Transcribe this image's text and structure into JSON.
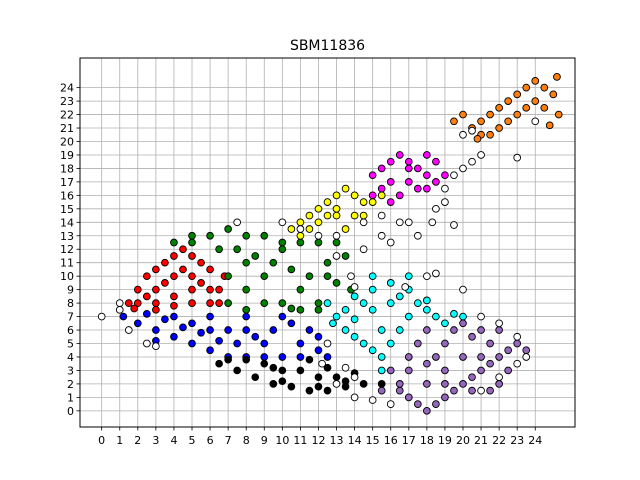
{
  "chart_data": {
    "type": "scatter",
    "title": "SBM11836",
    "xlabel": "",
    "ylabel": "",
    "xlim": [
      -1.2,
      26.2
    ],
    "ylim": [
      -1.2,
      26.2
    ],
    "xticks": [
      0,
      1,
      2,
      3,
      4,
      5,
      6,
      7,
      8,
      9,
      10,
      11,
      12,
      13,
      14,
      15,
      16,
      17,
      18,
      19,
      20,
      21,
      22,
      23,
      24
    ],
    "yticks": [
      0,
      1,
      2,
      3,
      4,
      5,
      6,
      7,
      8,
      9,
      10,
      11,
      12,
      13,
      14,
      15,
      16,
      17,
      18,
      19,
      20,
      21,
      22,
      23,
      24
    ],
    "grid": true,
    "legend": "none",
    "marker": "circle",
    "series": [
      {
        "color": "#ff0000",
        "points": [
          [
            1.5,
            8
          ],
          [
            2,
            9
          ],
          [
            2.5,
            10
          ],
          [
            3,
            10.5
          ],
          [
            3.5,
            11
          ],
          [
            4,
            11.5
          ],
          [
            4.5,
            12
          ],
          [
            5,
            11.5
          ],
          [
            5.5,
            11
          ],
          [
            6,
            10.5
          ],
          [
            2,
            8
          ],
          [
            3,
            9
          ],
          [
            4,
            10
          ],
          [
            5,
            10
          ],
          [
            6,
            9
          ],
          [
            6.5,
            8
          ],
          [
            3,
            8
          ],
          [
            4,
            8.5
          ],
          [
            5,
            9
          ],
          [
            6,
            8
          ],
          [
            2.5,
            8.5
          ],
          [
            3.5,
            9.5
          ],
          [
            4.5,
            10.5
          ],
          [
            5.5,
            9.5
          ],
          [
            6.5,
            9
          ],
          [
            1.8,
            7.6
          ],
          [
            4,
            7.8
          ],
          [
            5,
            8
          ],
          [
            3,
            7.5
          ],
          [
            6.8,
            10
          ]
        ]
      },
      {
        "color": "#0000ff",
        "points": [
          [
            1.2,
            7
          ],
          [
            2,
            6.5
          ],
          [
            3,
            6
          ],
          [
            4,
            5.5
          ],
          [
            5,
            5
          ],
          [
            6,
            4.5
          ],
          [
            7,
            4
          ],
          [
            8,
            4
          ],
          [
            9,
            4
          ],
          [
            10,
            4
          ],
          [
            11,
            4
          ],
          [
            12,
            4.5
          ],
          [
            2.5,
            7.2
          ],
          [
            3.5,
            6.8
          ],
          [
            4.5,
            6.2
          ],
          [
            5.5,
            5.8
          ],
          [
            6.5,
            5.2
          ],
          [
            7.5,
            5
          ],
          [
            8.5,
            5.5
          ],
          [
            9.5,
            6
          ],
          [
            10.5,
            6.5
          ],
          [
            11.5,
            6
          ],
          [
            12,
            5.5
          ],
          [
            4,
            7
          ],
          [
            6,
            7
          ],
          [
            8,
            7
          ],
          [
            10,
            7
          ],
          [
            11,
            5
          ],
          [
            9,
            5
          ],
          [
            7,
            6
          ],
          [
            5,
            6.5
          ],
          [
            3,
            5.2
          ],
          [
            12.5,
            4
          ],
          [
            8,
            6
          ],
          [
            6,
            6
          ]
        ]
      },
      {
        "color": "#000000",
        "points": [
          [
            6.5,
            3.5
          ],
          [
            7.5,
            3
          ],
          [
            8.5,
            2.5
          ],
          [
            9.5,
            2
          ],
          [
            10.5,
            1.8
          ],
          [
            11.5,
            1.5
          ],
          [
            12.5,
            1.5
          ],
          [
            13.5,
            1.8
          ],
          [
            14.5,
            2
          ],
          [
            15.5,
            2
          ],
          [
            9,
            3.5
          ],
          [
            10,
            3
          ],
          [
            11,
            3
          ],
          [
            12,
            2.5
          ],
          [
            13,
            2.5
          ],
          [
            14,
            2.8
          ],
          [
            8,
            3.8
          ],
          [
            10,
            2.2
          ],
          [
            12,
            1.8
          ],
          [
            11.5,
            3.8
          ],
          [
            13.5,
            2.2
          ],
          [
            7,
            3.8
          ],
          [
            9.5,
            3.2
          ],
          [
            12.5,
            3.2
          ]
        ]
      },
      {
        "color": "#008000",
        "points": [
          [
            4,
            12.5
          ],
          [
            5,
            13
          ],
          [
            6,
            13
          ],
          [
            7,
            13.5
          ],
          [
            8,
            13
          ],
          [
            9,
            13
          ],
          [
            10,
            12.5
          ],
          [
            11,
            12.5
          ],
          [
            12,
            12.5
          ],
          [
            13,
            12.5
          ],
          [
            7.5,
            12
          ],
          [
            8.5,
            11.5
          ],
          [
            9.5,
            11
          ],
          [
            10.5,
            10.5
          ],
          [
            11.5,
            10
          ],
          [
            12.5,
            10
          ],
          [
            13,
            9.5
          ],
          [
            7,
            10
          ],
          [
            8,
            9
          ],
          [
            9,
            8
          ],
          [
            10,
            8
          ],
          [
            11,
            7.5
          ],
          [
            12,
            8
          ],
          [
            7,
            8
          ],
          [
            8,
            7.5
          ],
          [
            13.5,
            11.5
          ],
          [
            12.5,
            11
          ],
          [
            11,
            9
          ],
          [
            9,
            10
          ],
          [
            10,
            12
          ],
          [
            8,
            11
          ],
          [
            12,
            7.5
          ],
          [
            5,
            12.5
          ],
          [
            6.5,
            12
          ],
          [
            13.8,
            9
          ],
          [
            10.5,
            7.6
          ]
        ]
      },
      {
        "color": "#00ffff",
        "points": [
          [
            12.5,
            8
          ],
          [
            13,
            7
          ],
          [
            13.5,
            6
          ],
          [
            14,
            5.5
          ],
          [
            14.5,
            5
          ],
          [
            15,
            4.5
          ],
          [
            15.5,
            4
          ],
          [
            15.5,
            3
          ],
          [
            16,
            5
          ],
          [
            16.5,
            6
          ],
          [
            17,
            7
          ],
          [
            17.5,
            8
          ],
          [
            18,
            7.5
          ],
          [
            18.5,
            7
          ],
          [
            19,
            6.5
          ],
          [
            19.5,
            7.2
          ],
          [
            20,
            7
          ],
          [
            15,
            9
          ],
          [
            16,
            9.5
          ],
          [
            17,
            9
          ],
          [
            14,
            8.5
          ],
          [
            15,
            7.5
          ],
          [
            16,
            8
          ],
          [
            13.5,
            7.5
          ],
          [
            15.5,
            6
          ],
          [
            14.5,
            8
          ],
          [
            17,
            10
          ],
          [
            16.5,
            8.5
          ],
          [
            14,
            6.8
          ],
          [
            18,
            8.2
          ],
          [
            12.8,
            6.5
          ],
          [
            15,
            10
          ]
        ]
      },
      {
        "color": "#9467bd",
        "points": [
          [
            16,
            3
          ],
          [
            16.5,
            1.5
          ],
          [
            17,
            1
          ],
          [
            17.5,
            0.5
          ],
          [
            18,
            0
          ],
          [
            18.5,
            0.5
          ],
          [
            19,
            1
          ],
          [
            19.5,
            1.5
          ],
          [
            20,
            2
          ],
          [
            20.5,
            2.5
          ],
          [
            21,
            3
          ],
          [
            21.5,
            3.5
          ],
          [
            22,
            4
          ],
          [
            22.5,
            4.5
          ],
          [
            23,
            5
          ],
          [
            17,
            4
          ],
          [
            17.5,
            5
          ],
          [
            18,
            6
          ],
          [
            18.5,
            4
          ],
          [
            19,
            5
          ],
          [
            19.5,
            6
          ],
          [
            20,
            6.5
          ],
          [
            20.5,
            5.5
          ],
          [
            21,
            6
          ],
          [
            21.5,
            5
          ],
          [
            22,
            6
          ],
          [
            16.5,
            2
          ],
          [
            17,
            3
          ],
          [
            18,
            2
          ],
          [
            19,
            3
          ],
          [
            20,
            4
          ],
          [
            21,
            4
          ],
          [
            22,
            2
          ],
          [
            19,
            2
          ],
          [
            18,
            3.5
          ],
          [
            20.5,
            1.5
          ],
          [
            15.5,
            1.5
          ],
          [
            22.5,
            3
          ],
          [
            23.5,
            4.5
          ],
          [
            21.5,
            1.5
          ]
        ]
      },
      {
        "color": "#ffff00",
        "points": [
          [
            10.5,
            13.5
          ],
          [
            11,
            14
          ],
          [
            11.5,
            14.5
          ],
          [
            12,
            15
          ],
          [
            12.5,
            15.5
          ],
          [
            13,
            16
          ],
          [
            13.5,
            16.5
          ],
          [
            14,
            16
          ],
          [
            14.5,
            15.5
          ],
          [
            15,
            15.5
          ],
          [
            15.5,
            16
          ],
          [
            12,
            14
          ],
          [
            13,
            14.5
          ],
          [
            14,
            14.5
          ],
          [
            13,
            15
          ],
          [
            11.5,
            13.5
          ],
          [
            14.5,
            14.5
          ],
          [
            12.5,
            14.5
          ],
          [
            13.5,
            13.5
          ],
          [
            11,
            13
          ]
        ]
      },
      {
        "color": "#ff00ff",
        "points": [
          [
            15,
            17.5
          ],
          [
            15.5,
            18
          ],
          [
            16,
            18.5
          ],
          [
            16.5,
            19
          ],
          [
            17,
            18.5
          ],
          [
            17.5,
            18
          ],
          [
            18,
            17.5
          ],
          [
            18.5,
            17
          ],
          [
            19,
            17.5
          ],
          [
            15.5,
            16.5
          ],
          [
            16,
            17
          ],
          [
            17,
            17
          ],
          [
            18,
            16.5
          ],
          [
            16.5,
            16
          ],
          [
            17.5,
            16.5
          ],
          [
            18.5,
            18.5
          ],
          [
            15,
            16
          ],
          [
            16,
            15.5
          ],
          [
            17,
            18
          ],
          [
            18,
            19
          ]
        ]
      },
      {
        "color": "#ff7f0e",
        "points": [
          [
            19.5,
            21.5
          ],
          [
            20,
            22
          ],
          [
            20.5,
            21
          ],
          [
            21,
            21.5
          ],
          [
            21.5,
            22
          ],
          [
            22,
            22.5
          ],
          [
            22.5,
            23
          ],
          [
            23,
            23.5
          ],
          [
            23.5,
            24
          ],
          [
            24,
            24.5
          ],
          [
            24.5,
            24
          ],
          [
            25,
            23.5
          ],
          [
            21,
            20.5
          ],
          [
            22,
            21
          ],
          [
            23,
            22
          ],
          [
            24,
            23
          ],
          [
            24.5,
            22.5
          ],
          [
            25.3,
            22
          ],
          [
            22.5,
            21.5
          ],
          [
            21.5,
            20.5
          ],
          [
            20.8,
            20.2
          ],
          [
            23.5,
            22.5
          ],
          [
            24.8,
            21.2
          ],
          [
            25.2,
            24.8
          ]
        ]
      },
      {
        "color": "#ffffff",
        "points": [
          [
            0,
            7
          ],
          [
            1,
            7.5
          ],
          [
            1,
            8
          ],
          [
            1.5,
            6
          ],
          [
            2.5,
            5
          ],
          [
            3,
            4.8
          ],
          [
            7.5,
            14
          ],
          [
            10,
            14
          ],
          [
            12,
            13
          ],
          [
            13,
            13
          ],
          [
            14.5,
            14
          ],
          [
            15.5,
            14.5
          ],
          [
            16.5,
            14
          ],
          [
            17,
            14
          ],
          [
            18.5,
            15
          ],
          [
            19,
            15.5
          ],
          [
            19.5,
            17.5
          ],
          [
            20,
            18
          ],
          [
            20.5,
            18.5
          ],
          [
            21,
            19
          ],
          [
            20,
            20.5
          ],
          [
            20.5,
            20.8
          ],
          [
            19,
            16.5
          ],
          [
            15.5,
            13
          ],
          [
            16,
            12.5
          ],
          [
            14.5,
            12
          ],
          [
            13,
            11.5
          ],
          [
            18,
            10
          ],
          [
            18.5,
            10.2
          ],
          [
            20,
            9
          ],
          [
            21,
            7
          ],
          [
            22,
            6.5
          ],
          [
            23,
            5.5
          ],
          [
            23.5,
            4
          ],
          [
            23,
            3.5
          ],
          [
            22,
            2.5
          ],
          [
            21,
            1.5
          ],
          [
            13,
            2
          ],
          [
            14,
            2.5
          ],
          [
            14,
            1
          ],
          [
            15,
            0.8
          ],
          [
            16,
            0.5
          ],
          [
            12.5,
            5
          ],
          [
            12.2,
            3.5
          ],
          [
            13.5,
            3.2
          ],
          [
            23,
            18.8
          ],
          [
            24,
            21.5
          ],
          [
            16.8,
            9.2
          ],
          [
            19.5,
            13.8
          ],
          [
            18.3,
            14
          ],
          [
            17.5,
            13
          ],
          [
            11,
            13.5
          ],
          [
            14,
            9.2
          ],
          [
            13.8,
            10
          ]
        ]
      }
    ]
  }
}
